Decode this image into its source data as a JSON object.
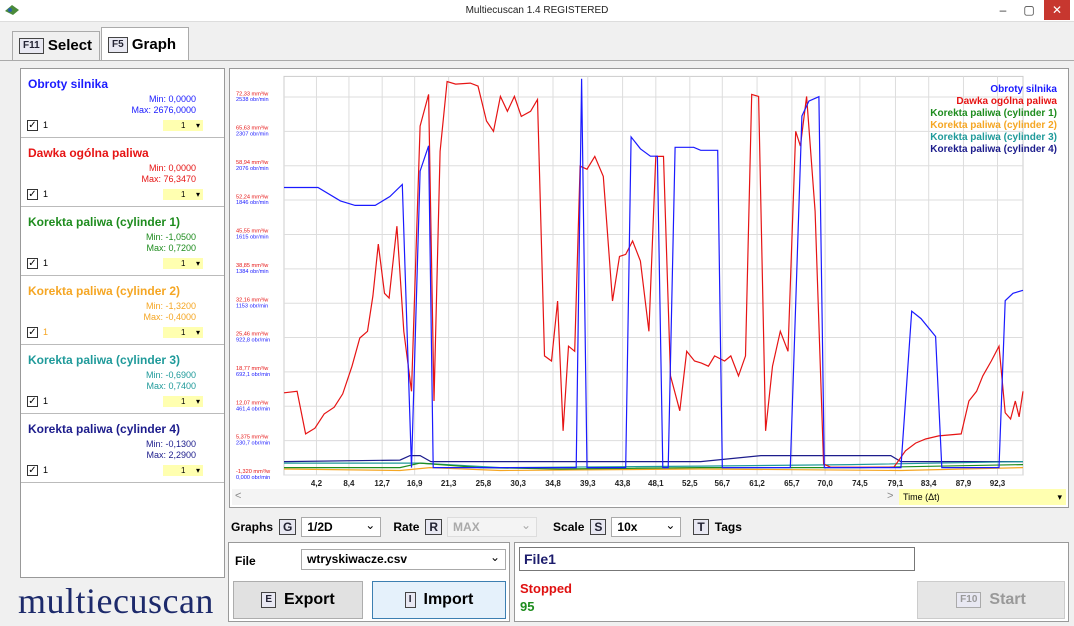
{
  "window": {
    "title": "Multiecuscan 1.4 REGISTERED"
  },
  "tabs": [
    {
      "key": "F11",
      "label": "Select"
    },
    {
      "key": "F5",
      "label": "Graph"
    }
  ],
  "sensors": [
    {
      "name": "Obroty silnika",
      "color": "#1a1aff",
      "min": "Min: 0,0000",
      "max": "Max: 2676,0000",
      "checked": true,
      "check_label": "1",
      "scale": "1"
    },
    {
      "name": "Dawka ogólna paliwa",
      "color": "#e61414",
      "min": "Min: 0,0000",
      "max": "Max: 76,3470",
      "checked": true,
      "check_label": "1",
      "scale": "1"
    },
    {
      "name": "Korekta paliwa (cylinder 1)",
      "color": "#1e8c1e",
      "min": "Min: -1,0500",
      "max": "Max: 0,7200",
      "checked": true,
      "check_label": "1",
      "scale": "1"
    },
    {
      "name": "Korekta paliwa (cylinder 2)",
      "color": "#f5a623",
      "min": "Min: -1,3200",
      "max": "Max: -0,4000",
      "checked": true,
      "check_label": "1",
      "scale": "1"
    },
    {
      "name": "Korekta paliwa (cylinder 3)",
      "color": "#1f9a9a",
      "min": "Min: -0,6900",
      "max": "Max: 0,7400",
      "checked": true,
      "check_label": "1",
      "scale": "1"
    },
    {
      "name": "Korekta paliwa (cylinder 4)",
      "color": "#1c1c8c",
      "min": "Min: -0,1300",
      "max": "Max: 2,2900",
      "checked": true,
      "check_label": "1",
      "scale": "1"
    }
  ],
  "chart_data": {
    "type": "line",
    "xlabel": "Time (Δt)",
    "grid": true,
    "legend": "upper right",
    "xlim": [
      0,
      95.6
    ],
    "ylim": [
      0,
      2676
    ],
    "y2lim": [
      -1.32,
      76.4
    ],
    "xticks": [
      {
        "value": 4.2,
        "label": "4,2"
      },
      {
        "value": 8.4,
        "label": "8,4"
      },
      {
        "value": 12.7,
        "label": "12,7"
      },
      {
        "value": 16.9,
        "label": "16,9"
      },
      {
        "value": 21.3,
        "label": "21,3"
      },
      {
        "value": 25.8,
        "label": "25,8"
      },
      {
        "value": 30.3,
        "label": "30,3"
      },
      {
        "value": 34.8,
        "label": "34,8"
      },
      {
        "value": 39.3,
        "label": "39,3"
      },
      {
        "value": 43.8,
        "label": "43,8"
      },
      {
        "value": 48.1,
        "label": "48,1"
      },
      {
        "value": 52.5,
        "label": "52,5"
      },
      {
        "value": 56.7,
        "label": "56,7"
      },
      {
        "value": 61.2,
        "label": "61,2"
      },
      {
        "value": 65.7,
        "label": "65,7"
      },
      {
        "value": 70,
        "label": "70,0"
      },
      {
        "value": 74.5,
        "label": "74,5"
      },
      {
        "value": 79.1,
        "label": "79,1"
      },
      {
        "value": 83.4,
        "label": "83,4"
      },
      {
        "value": 87.9,
        "label": "87,9"
      },
      {
        "value": 92.3,
        "label": "92,3"
      }
    ],
    "yticks": [
      {
        "value": 0,
        "label": "0,000 obr/min"
      },
      {
        "value": 230.7,
        "label": "230,7 obr/min"
      },
      {
        "value": 461.4,
        "label": "461,4 obr/min"
      },
      {
        "value": 692.1,
        "label": "692,1 obr/min"
      },
      {
        "value": 922.8,
        "label": "922,8 obr/min"
      },
      {
        "value": 1153,
        "label": "1153 obr/min"
      },
      {
        "value": 1384,
        "label": "1384 obr/min"
      },
      {
        "value": 1615,
        "label": "1615 obr/min"
      },
      {
        "value": 1846,
        "label": "1846 obr/min"
      },
      {
        "value": 2076,
        "label": "2076 obr/min"
      },
      {
        "value": 2307,
        "label": "2307 obr/min"
      },
      {
        "value": 2538,
        "label": "2538 obr/min"
      }
    ],
    "y2ticks": [
      {
        "value": -1.32,
        "label": "-1,320 mm³/w"
      },
      {
        "value": 5.375,
        "label": "5,375 mm³/w"
      },
      {
        "value": 12.07,
        "label": "12,07 mm³/w"
      },
      {
        "value": 18.77,
        "label": "18,77 mm³/w"
      },
      {
        "value": 25.46,
        "label": "25,46 mm³/w"
      },
      {
        "value": 32.16,
        "label": "32,16 mm³/w"
      },
      {
        "value": 38.85,
        "label": "38,85 mm³/w"
      },
      {
        "value": 45.55,
        "label": "45,55 mm³/w"
      },
      {
        "value": 52.24,
        "label": "52,24 mm³/w"
      },
      {
        "value": 58.94,
        "label": "58,94 mm³/w"
      },
      {
        "value": 65.63,
        "label": "65,63 mm³/w"
      },
      {
        "value": 72.33,
        "label": "72,33 mm³/w"
      }
    ],
    "series": [
      {
        "name": "Obroty silnika",
        "color": "#1a1aff",
        "axis": "y",
        "x": [
          0,
          4.4,
          7.3,
          9.2,
          11.8,
          13.7,
          15.3,
          16.5,
          17.6,
          18.7,
          19.3,
          37.8,
          38.5,
          39.2,
          44.2,
          44.9,
          46.1,
          47.4,
          48.3,
          49.0,
          49.7,
          50.6,
          53.0,
          53.9,
          56.1,
          56.7,
          65.5,
          67.0,
          67.9,
          69.2,
          69.9,
          79.8,
          81.2,
          82.4,
          84.3,
          85.1,
          92.5,
          93.3,
          94.3,
          95.6
        ],
        "values": [
          1930,
          1930,
          1840,
          1810,
          1810,
          1870,
          1950,
          50,
          2040,
          2210,
          50,
          50,
          2660,
          50,
          50,
          2270,
          2190,
          2140,
          2140,
          50,
          50,
          2200,
          2200,
          2180,
          2180,
          50,
          50,
          2410,
          2510,
          2540,
          50,
          50,
          1100,
          1050,
          930,
          50,
          50,
          1170,
          1220,
          1240
        ]
      },
      {
        "name": "Dawka ogólna paliwa",
        "color": "#e61414",
        "axis": "y2",
        "x": [
          0,
          1.7,
          2.8,
          4.0,
          5.2,
          6.5,
          7.6,
          8.8,
          9.8,
          10.8,
          11.5,
          12.2,
          13.0,
          13.6,
          14.6,
          15.5,
          16.5,
          17.6,
          18.7,
          19.4,
          20.2,
          21.1,
          22.2,
          24.1,
          25.1,
          26.2,
          27.1,
          28.0,
          28.9,
          29.8,
          30.7,
          31.9,
          32.8,
          33.7,
          34.6,
          35.4,
          36.1,
          36.8,
          37.6,
          38.3,
          39.2,
          40.2,
          41.3,
          42.5,
          43.4,
          44.2,
          45.1,
          46.1,
          47.2,
          48.1,
          49.1,
          50.0,
          51.2,
          52.1,
          53.1,
          54.0,
          54.9,
          55.7,
          57.0,
          57.8,
          58.8,
          59.7,
          60.5,
          61.4,
          62.3,
          63.2,
          64.2,
          65.2,
          66.2,
          66.8,
          67.6,
          68.7,
          69.8,
          70.7,
          78.9,
          80.4,
          81.7,
          83.0,
          84.7,
          87.6,
          88.6,
          89.6,
          90.4,
          91.5,
          92.5,
          93.3,
          94.0,
          94.6,
          95.1,
          95.6
        ],
        "values": [
          14.7,
          15.0,
          6.7,
          7.8,
          10.6,
          11.9,
          14.5,
          19.9,
          25.4,
          26.7,
          33.6,
          43.7,
          34.1,
          33.2,
          47.2,
          26.7,
          15.0,
          66.7,
          72.9,
          13.1,
          61.8,
          75.4,
          74.9,
          75.1,
          74.5,
          67.7,
          65.7,
          72.5,
          69.6,
          72.5,
          68.6,
          69.6,
          71.9,
          21.9,
          20.9,
          32.6,
          7.3,
          23.8,
          22.8,
          58.9,
          58.3,
          60.8,
          56.9,
          32.6,
          41.3,
          41.7,
          44.3,
          40.4,
          26.7,
          60.8,
          60.8,
          18.0,
          11.2,
          22.8,
          20.9,
          20.5,
          19.9,
          21.9,
          20.9,
          21.9,
          18.0,
          21.9,
          72.9,
          72.5,
          7.3,
          19.9,
          26.7,
          22.8,
          65.7,
          62.8,
          72.5,
          50.1,
          0.8,
          0.2,
          0.2,
          3.4,
          4.9,
          5.7,
          6.3,
          6.7,
          13.1,
          15.0,
          18.0,
          20.9,
          23.8,
          10.8,
          9.6,
          13.1,
          10.0,
          15.0
        ]
      },
      {
        "name": "Korekta paliwa (cylinder 1)",
        "color": "#1e8c1e",
        "axis": "y",
        "x": [
          0,
          15.0,
          17.6,
          25.4,
          35.8,
          53.9,
          74.6,
          95.6
        ],
        "values": [
          50,
          50,
          80,
          50,
          40,
          50,
          50,
          70
        ]
      },
      {
        "name": "Korekta paliwa (cylinder 2)",
        "color": "#f5a623",
        "axis": "y",
        "x": [
          0,
          15.0,
          18.9,
          28.0,
          53.9,
          79.8,
          95.6
        ],
        "values": [
          40,
          30,
          50,
          30,
          40,
          30,
          50
        ]
      },
      {
        "name": "Korekta paliwa (cylinder 3)",
        "color": "#1f9a9a",
        "axis": "y",
        "x": [
          0,
          17.6,
          28.0,
          53.9,
          73.3,
          95.6
        ],
        "values": [
          80,
          80,
          50,
          60,
          70,
          90
        ]
      },
      {
        "name": "Korekta paliwa (cylinder 4)",
        "color": "#1c1c8c",
        "axis": "y",
        "x": [
          0,
          15.0,
          16.3,
          17.6,
          19.0,
          35.8,
          53.9,
          61.7,
          74.6,
          78.5,
          79.8,
          95.6
        ],
        "values": [
          90,
          100,
          130,
          130,
          90,
          90,
          90,
          130,
          130,
          130,
          90,
          90
        ]
      }
    ]
  },
  "controls": {
    "graphs": {
      "label": "Graphs",
      "key": "G",
      "value": "1/2D"
    },
    "rate": {
      "label": "Rate",
      "key": "R",
      "value": "MAX"
    },
    "scale": {
      "label": "Scale",
      "key": "S",
      "value": "10x"
    },
    "tags": {
      "label": "Tags",
      "key": "T"
    }
  },
  "file_panel": {
    "label": "File",
    "value": "wtryskiwacze.csv",
    "export": {
      "key": "E",
      "label": "Export"
    },
    "import": {
      "key": "I",
      "label": "Import"
    }
  },
  "status_panel": {
    "name": "File1",
    "state": "Stopped",
    "count": "95",
    "start": {
      "key": "F10",
      "label": "Start"
    }
  },
  "logo": "multiecuscan"
}
